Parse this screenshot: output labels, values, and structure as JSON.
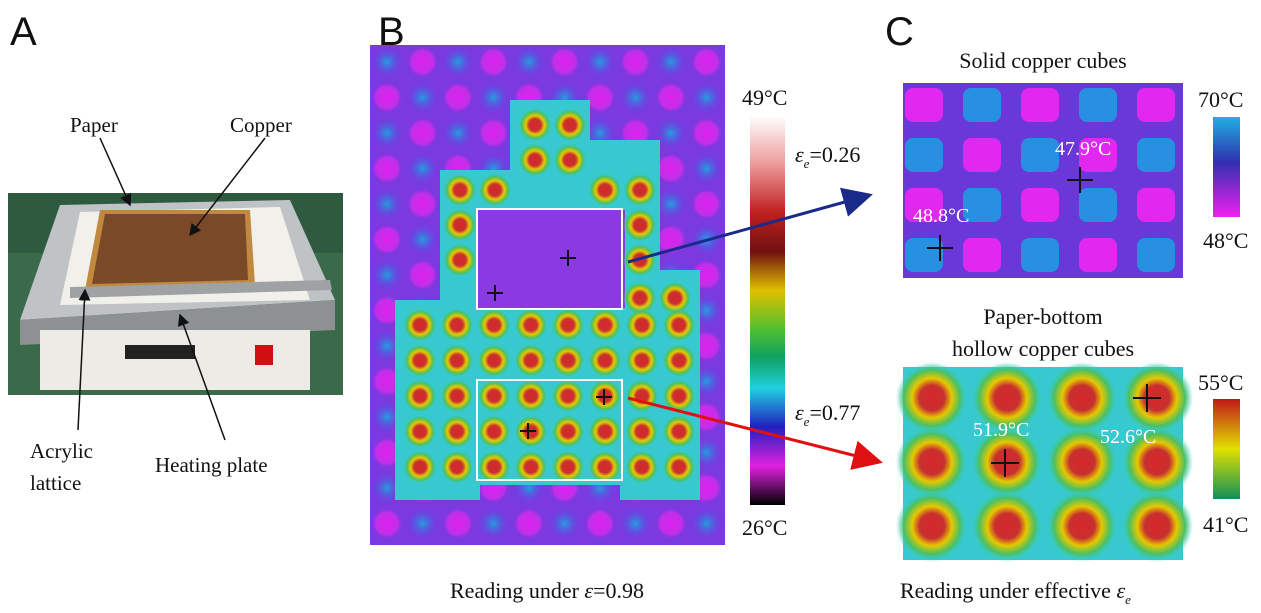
{
  "panels": {
    "a": {
      "label": "A",
      "paper": "Paper",
      "copper": "Copper",
      "acrylic": [
        "Acrylic",
        "lattice"
      ],
      "heating": "Heating plate"
    },
    "b": {
      "label": "B",
      "colorbar": {
        "max": "49°C",
        "min": "26°C"
      },
      "reading_top": {
        "symbol": "ε",
        "subscript": "e",
        "text": "=0.26"
      },
      "reading_bottom": {
        "symbol": "ε",
        "subscript": "e",
        "text": "=0.77"
      },
      "caption": {
        "text": "Reading under ",
        "symbol": "ε",
        "value": "=0.98"
      }
    },
    "c": {
      "label": "C",
      "top": {
        "title": "Solid copper cubes",
        "max": "70°C",
        "min": "48°C",
        "points": [
          "47.9°C",
          "48.8°C"
        ]
      },
      "bottom": {
        "title": [
          "Paper-bottom",
          "hollow copper cubes"
        ],
        "max": "55°C",
        "min": "41°C",
        "points": [
          "51.9°C",
          "52.6°C"
        ]
      },
      "caption": {
        "text": "Reading under effective ",
        "symbol": "ε",
        "subscript": "e"
      }
    }
  }
}
